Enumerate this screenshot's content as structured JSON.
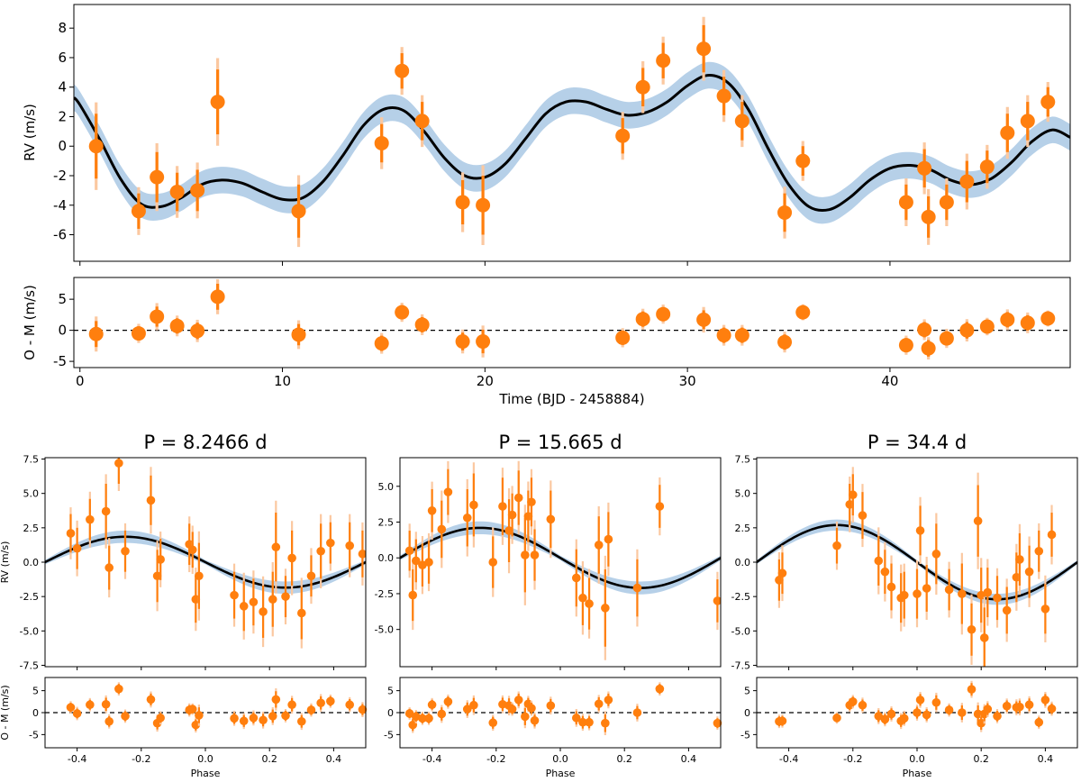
{
  "chart_data": [
    {
      "id": "timeseries",
      "type": "scatter",
      "xlabel": "Time (BJD - 2458884)",
      "ylabel": "RV (m/s)",
      "resid_ylabel": "O - M (m/s)",
      "xlim": [
        -0.3,
        48.9
      ],
      "ylim": [
        -7.8,
        9.6
      ],
      "resid_ylim": [
        -6,
        8.5
      ],
      "xticks": [
        0,
        10,
        20,
        30,
        40
      ],
      "yticks": [
        -6,
        -4,
        -2,
        0,
        2,
        4,
        6,
        8
      ],
      "resid_yticks": [
        -5,
        0,
        5
      ],
      "colors": {
        "points": "#ff7f0e",
        "jitter": "#fbc8a0",
        "model": "#000000",
        "band": "#b6d0e8",
        "zero": "#000000"
      },
      "points": {
        "t": [
          0.8,
          2.9,
          3.8,
          4.8,
          5.8,
          6.8,
          10.8,
          14.9,
          15.9,
          16.9,
          18.9,
          19.9,
          26.8,
          27.8,
          28.8,
          30.8,
          31.8,
          32.7,
          34.8,
          35.7,
          40.8,
          41.7,
          41.9,
          42.8,
          43.8,
          44.8,
          45.8,
          46.8,
          47.8
        ],
        "rv": [
          0.0,
          -4.4,
          -2.1,
          -3.1,
          -3.0,
          3.0,
          -4.4,
          0.2,
          5.1,
          1.7,
          -3.8,
          -4.0,
          0.7,
          4.0,
          5.8,
          6.6,
          3.4,
          1.7,
          -4.5,
          -1.0,
          -3.8,
          -1.5,
          -4.8,
          -3.8,
          -2.4,
          -1.4,
          0.9,
          1.7,
          3.0
        ],
        "err": [
          2.2,
          1.2,
          1.7,
          1.3,
          1.4,
          2.2,
          1.8,
          1.3,
          1.2,
          1.3,
          1.5,
          2.0,
          1.2,
          1.3,
          1.2,
          1.6,
          1.3,
          1.3,
          1.3,
          1.0,
          1.2,
          1.3,
          1.4,
          1.2,
          1.4,
          1.1,
          1.3,
          1.3,
          1.0
        ],
        "resid": [
          -0.6,
          -0.5,
          2.2,
          0.7,
          -0.1,
          5.4,
          -0.7,
          -2.1,
          2.9,
          0.9,
          -1.8,
          -1.8,
          -1.2,
          1.8,
          2.6,
          1.7,
          -0.8,
          -0.8,
          -1.9,
          2.9,
          -2.4,
          0.1,
          -2.9,
          -1.3,
          0.0,
          0.6,
          1.7,
          1.2,
          1.9
        ]
      },
      "model": {
        "t": [
          -0.3,
          0,
          1,
          2,
          3,
          4,
          5,
          6,
          7,
          8,
          9,
          10,
          11,
          12,
          13,
          14,
          15,
          16,
          17,
          18,
          19,
          20,
          21,
          22,
          23,
          24,
          25,
          26,
          27,
          28,
          29,
          30,
          31,
          32,
          33,
          34,
          35,
          36,
          37,
          38,
          39,
          40,
          41,
          42,
          43,
          44,
          45,
          46,
          47,
          48,
          48.9
        ],
        "rv": [
          3.3,
          2.8,
          0.4,
          -2.2,
          -3.9,
          -4.1,
          -3.5,
          -2.6,
          -2.3,
          -2.5,
          -3.1,
          -3.6,
          -3.5,
          -2.4,
          -0.6,
          1.4,
          2.5,
          2.4,
          1.0,
          -0.8,
          -2.0,
          -2.1,
          -1.2,
          0.5,
          2.2,
          3.0,
          3.0,
          2.5,
          2.1,
          2.3,
          3.0,
          4.1,
          4.8,
          4.3,
          2.5,
          -0.2,
          -2.6,
          -4.1,
          -4.3,
          -3.5,
          -2.3,
          -1.5,
          -1.3,
          -1.6,
          -2.3,
          -2.6,
          -2.2,
          -1.1,
          0.3,
          1.1,
          0.6
        ],
        "band": 0.9
      }
    },
    {
      "id": "phase-p1",
      "type": "scatter",
      "title": "P = 8.2466 d",
      "xlabel": "Phase",
      "ylabel": "RV (m/s)",
      "resid_ylabel": "O - M (m/s)",
      "xlim": [
        -0.5,
        0.5
      ],
      "ylim": [
        -7.6,
        7.6
      ],
      "resid_ylim": [
        -8,
        8
      ],
      "xticks": [
        -0.4,
        -0.2,
        0.0,
        0.2,
        0.4
      ],
      "yticks": [
        -7.5,
        -5.0,
        -2.5,
        0.0,
        2.5,
        5.0,
        7.5
      ],
      "resid_yticks": [
        -5,
        0,
        5
      ],
      "amplitude": 1.85,
      "band": 0.45,
      "points": {
        "x": [
          -0.42,
          -0.4,
          -0.36,
          -0.31,
          -0.3,
          -0.27,
          -0.25,
          -0.17,
          -0.15,
          -0.14,
          -0.05,
          -0.04,
          -0.03,
          -0.02,
          0.09,
          0.12,
          0.15,
          0.18,
          0.21,
          0.22,
          0.25,
          0.27,
          0.3,
          0.33,
          0.36,
          0.39,
          0.45,
          0.49
        ],
        "rv": [
          2.1,
          1.0,
          3.1,
          3.7,
          -0.4,
          7.2,
          0.8,
          4.5,
          -1.0,
          0.2,
          1.3,
          0.9,
          -2.7,
          -1.0,
          -2.4,
          -3.2,
          -2.9,
          -3.6,
          -2.7,
          1.1,
          -2.5,
          0.3,
          -3.7,
          -1.0,
          0.8,
          1.4,
          1.2,
          0.6
        ],
        "err": [
          1.4,
          1.5,
          1.5,
          2.0,
          1.6,
          1.5,
          1.5,
          1.8,
          1.9,
          1.5,
          1.5,
          1.3,
          1.7,
          2.4,
          1.7,
          1.8,
          1.7,
          1.9,
          2.0,
          2.5,
          1.5,
          2.0,
          1.9,
          1.5,
          2.0,
          1.5,
          1.7,
          1.7
        ],
        "resid": [
          1.2,
          -0.2,
          1.8,
          1.9,
          -2.0,
          5.4,
          -0.8,
          3.0,
          -2.4,
          -1.2,
          0.6,
          0.8,
          -2.8,
          -0.6,
          -1.3,
          -1.9,
          -1.2,
          -1.7,
          -0.8,
          3.0,
          -0.7,
          1.8,
          -2.0,
          0.6,
          2.2,
          2.6,
          1.8,
          0.7
        ]
      }
    },
    {
      "id": "phase-p2",
      "type": "scatter",
      "title": "P = 15.665 d",
      "xlabel": "Phase",
      "ylabel": "",
      "resid_ylabel": "",
      "xlim": [
        -0.5,
        0.5
      ],
      "ylim": [
        -7.6,
        7.0
      ],
      "resid_ylim": [
        -8,
        8
      ],
      "xticks": [
        -0.4,
        -0.2,
        0.0,
        0.2,
        0.4
      ],
      "yticks": [
        -5.0,
        -2.5,
        0.0,
        2.5,
        5.0
      ],
      "resid_yticks": [
        -5,
        0,
        5
      ],
      "amplitude": 2.1,
      "band": 0.45,
      "points": {
        "x": [
          -0.47,
          -0.46,
          -0.45,
          -0.43,
          -0.41,
          -0.4,
          -0.37,
          -0.35,
          -0.29,
          -0.27,
          -0.21,
          -0.18,
          -0.16,
          -0.15,
          -0.13,
          -0.11,
          -0.1,
          -0.09,
          -0.08,
          -0.03,
          0.05,
          0.07,
          0.09,
          0.12,
          0.14,
          0.15,
          0.24,
          0.31,
          0.49
        ],
        "rv": [
          0.5,
          -2.6,
          -0.2,
          -0.5,
          -0.3,
          3.3,
          2.0,
          4.6,
          2.8,
          3.7,
          -0.3,
          3.6,
          1.9,
          3.0,
          4.2,
          0.2,
          2.9,
          3.9,
          0.2,
          2.7,
          -1.4,
          -2.8,
          -3.2,
          0.9,
          -3.5,
          1.3,
          -2.1,
          3.6,
          -3.0
        ],
        "err": [
          1.4,
          1.8,
          1.5,
          1.5,
          1.5,
          1.5,
          2.0,
          1.6,
          2.0,
          2.2,
          1.8,
          2.0,
          2.2,
          1.5,
          1.9,
          2.6,
          1.8,
          1.7,
          1.8,
          2.0,
          2.0,
          1.9,
          1.8,
          2.0,
          2.7,
          1.9,
          2.0,
          1.5,
          1.5
        ],
        "resid": [
          -0.2,
          -2.8,
          -0.9,
          -1.3,
          -1.3,
          1.8,
          -0.3,
          2.5,
          0.8,
          1.7,
          -2.3,
          1.9,
          1.6,
          0.8,
          2.9,
          -0.9,
          2.0,
          1.0,
          -1.8,
          1.6,
          -1.2,
          -2.2,
          -2.2,
          2.0,
          -2.4,
          2.9,
          0.0,
          5.4,
          -2.4
        ]
      }
    },
    {
      "id": "phase-p3",
      "type": "scatter",
      "title": "P = 34.4 d",
      "xlabel": "Phase",
      "ylabel": "",
      "resid_ylabel": "",
      "xlim": [
        -0.5,
        0.5
      ],
      "ylim": [
        -7.6,
        7.6
      ],
      "resid_ylim": [
        -8,
        8
      ],
      "xticks": [
        -0.4,
        -0.2,
        0.0,
        0.2,
        0.4
      ],
      "yticks": [
        -7.5,
        -5.0,
        -2.5,
        0.0,
        2.5,
        5.0,
        7.5
      ],
      "resid_yticks": [
        -5,
        0,
        5
      ],
      "amplitude": 2.7,
      "band": 0.4,
      "points": {
        "x": [
          -0.43,
          -0.42,
          -0.25,
          -0.21,
          -0.2,
          -0.17,
          -0.12,
          -0.1,
          -0.08,
          -0.05,
          -0.04,
          0.0,
          0.01,
          0.03,
          0.06,
          0.1,
          0.14,
          0.17,
          0.19,
          0.2,
          0.21,
          0.22,
          0.25,
          0.28,
          0.31,
          0.32,
          0.35,
          0.38,
          0.4,
          0.42
        ],
        "rv": [
          -1.3,
          -0.8,
          1.2,
          4.2,
          4.9,
          3.4,
          0.1,
          -0.7,
          -1.8,
          -2.6,
          -2.4,
          -2.3,
          2.3,
          -1.9,
          0.6,
          -2.0,
          -2.3,
          -4.9,
          3.0,
          -2.4,
          -5.5,
          -2.2,
          -2.6,
          -3.5,
          -1.1,
          0.2,
          -0.7,
          0.8,
          -3.4,
          2.0
        ],
        "err": [
          1.5,
          1.5,
          1.3,
          1.5,
          1.5,
          1.7,
          1.8,
          1.6,
          1.7,
          1.8,
          1.7,
          1.8,
          1.8,
          1.7,
          2.2,
          1.5,
          2.2,
          1.9,
          2.6,
          2.0,
          2.2,
          1.8,
          1.6,
          1.7,
          1.8,
          1.9,
          1.9,
          1.5,
          1.8,
          1.6
        ],
        "resid": [
          -2.0,
          -1.9,
          -1.2,
          1.7,
          2.5,
          1.7,
          -0.8,
          -1.5,
          -0.3,
          -1.9,
          -1.3,
          0.0,
          2.9,
          -0.5,
          2.3,
          0.6,
          0.0,
          5.3,
          -0.3,
          -2.4,
          -0.3,
          0.8,
          -0.8,
          1.5,
          1.2,
          1.3,
          1.8,
          -2.2,
          2.9,
          0.9
        ]
      }
    }
  ]
}
